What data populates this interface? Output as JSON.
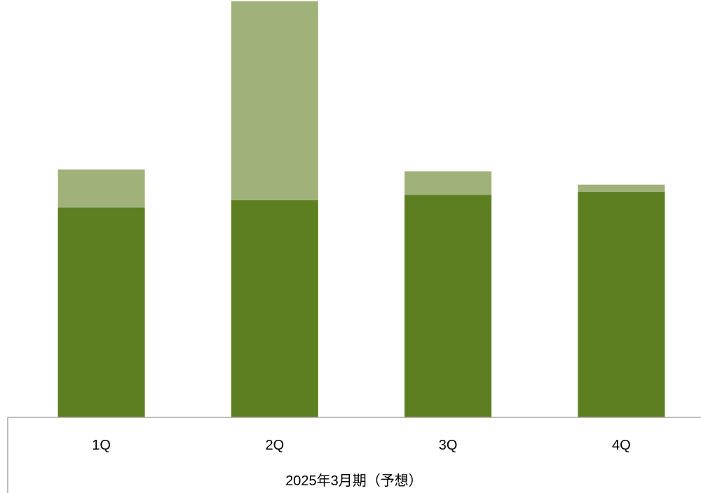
{
  "chart_data": {
    "type": "bar",
    "stacked": true,
    "categories": [
      "1Q",
      "2Q",
      "3Q",
      "4Q"
    ],
    "group_label": "2025年3月期（予想）",
    "series": [
      {
        "values": [
          58,
          60,
          61.5,
          62.3
        ],
        "color": "#5e7f21"
      },
      {
        "values": [
          10.5,
          55,
          6.5,
          2
        ],
        "color": "#a0b27a"
      }
    ],
    "ylim": [
      0,
      113
    ],
    "grid": false,
    "legend": "none"
  }
}
